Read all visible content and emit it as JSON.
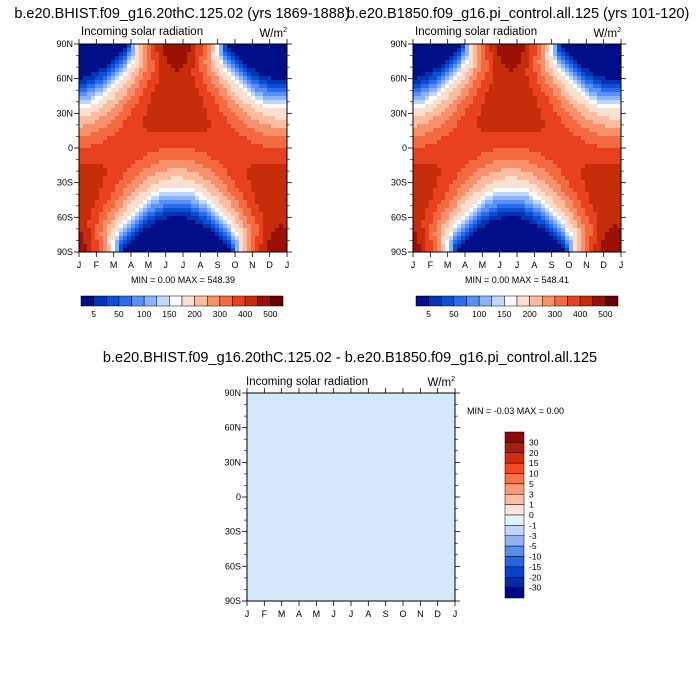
{
  "chart_data": [
    {
      "type": "heatmap",
      "title": "b.e20.BHIST.f09_g16.20thC.125.02 (yrs 1869-1888)",
      "subtitle": "Incoming solar radiation",
      "units": "W/m",
      "units_superscript": "2",
      "x_tick_labels": [
        "J",
        "F",
        "M",
        "A",
        "M",
        "J",
        "J",
        "A",
        "S",
        "O",
        "N",
        "D",
        "J"
      ],
      "y_tick_labels": [
        "90N",
        "60N",
        "30N",
        "0",
        "30S",
        "60S",
        "90S"
      ],
      "y_range": [
        -90,
        90
      ],
      "stats_text": "MIN =   0.00 MAX = 548.39",
      "min": 0.0,
      "max": 548.39,
      "colorbar": {
        "orientation": "horizontal",
        "levels": [
          25,
          50,
          75,
          100,
          125,
          150,
          175,
          200,
          250,
          300,
          350,
          400,
          450,
          500
        ],
        "tick_labels": [
          "5",
          "50",
          "100",
          "150",
          "200",
          "300",
          "400",
          "500"
        ],
        "colors": [
          "#000E88",
          "#0432B0",
          "#0A50D4",
          "#2D6CEE",
          "#5A90F6",
          "#8AB4FA",
          "#C0D8FC",
          "#FBFCFF",
          "#FCE0CF",
          "#FBBCA0",
          "#F9906C",
          "#F46A40",
          "#E74120",
          "#C42C0A",
          "#9A1004",
          "#690000"
        ]
      }
    },
    {
      "type": "heatmap",
      "title": "b.e20.B1850.f09_g16.pi_control.all.125 (yrs 101-120)",
      "subtitle": "Incoming solar radiation",
      "units": "W/m",
      "units_superscript": "2",
      "x_tick_labels": [
        "J",
        "F",
        "M",
        "A",
        "M",
        "J",
        "J",
        "A",
        "S",
        "O",
        "N",
        "D",
        "J"
      ],
      "y_tick_labels": [
        "90N",
        "60N",
        "30N",
        "0",
        "30S",
        "60S",
        "90S"
      ],
      "y_range": [
        -90,
        90
      ],
      "stats_text": "MIN =   0.00 MAX = 548.41",
      "min": 0.0,
      "max": 548.41,
      "colorbar": {
        "orientation": "horizontal",
        "levels": [
          25,
          50,
          75,
          100,
          125,
          150,
          175,
          200,
          250,
          300,
          350,
          400,
          450,
          500
        ],
        "tick_labels": [
          "5",
          "50",
          "100",
          "150",
          "200",
          "300",
          "400",
          "500"
        ],
        "colors": [
          "#000E88",
          "#0432B0",
          "#0A50D4",
          "#2D6CEE",
          "#5A90F6",
          "#8AB4FA",
          "#C0D8FC",
          "#FBFCFF",
          "#FCE0CF",
          "#FBBCA0",
          "#F9906C",
          "#F46A40",
          "#E74120",
          "#C42C0A",
          "#9A1004",
          "#690000"
        ]
      }
    },
    {
      "type": "heatmap",
      "title": "b.e20.BHIST.f09_g16.20thC.125.02 - b.e20.B1850.f09_g16.pi_control.all.125",
      "subtitle": "Incoming solar radiation",
      "units": "W/m",
      "units_superscript": "2",
      "x_tick_labels": [
        "J",
        "F",
        "M",
        "A",
        "M",
        "J",
        "J",
        "A",
        "S",
        "O",
        "N",
        "D",
        "J"
      ],
      "y_tick_labels": [
        "90N",
        "60N",
        "30N",
        "0",
        "30S",
        "60S",
        "90S"
      ],
      "y_range": [
        -90,
        90
      ],
      "stats_text": "MIN =  -0.03 MAX =   0.00",
      "min": -0.03,
      "max": 0.0,
      "fill_color": "#D4E8FC",
      "colorbar": {
        "orientation": "vertical",
        "tick_labels": [
          "30",
          "20",
          "15",
          "10",
          "5",
          "3",
          "1",
          "0",
          "-1",
          "-3",
          "-5",
          "-10",
          "-15",
          "-20",
          "-30"
        ],
        "colors": [
          "#8A0A0A",
          "#B01C0C",
          "#D42C10",
          "#F04A1E",
          "#F87448",
          "#FB9A78",
          "#FCBEA6",
          "#FDE4D8",
          "#E6F0FD",
          "#C0D6FA",
          "#8EB2F4",
          "#5A8CEC",
          "#2C62E6",
          "#0A40CC",
          "#042AA4",
          "#000A80"
        ]
      }
    }
  ]
}
